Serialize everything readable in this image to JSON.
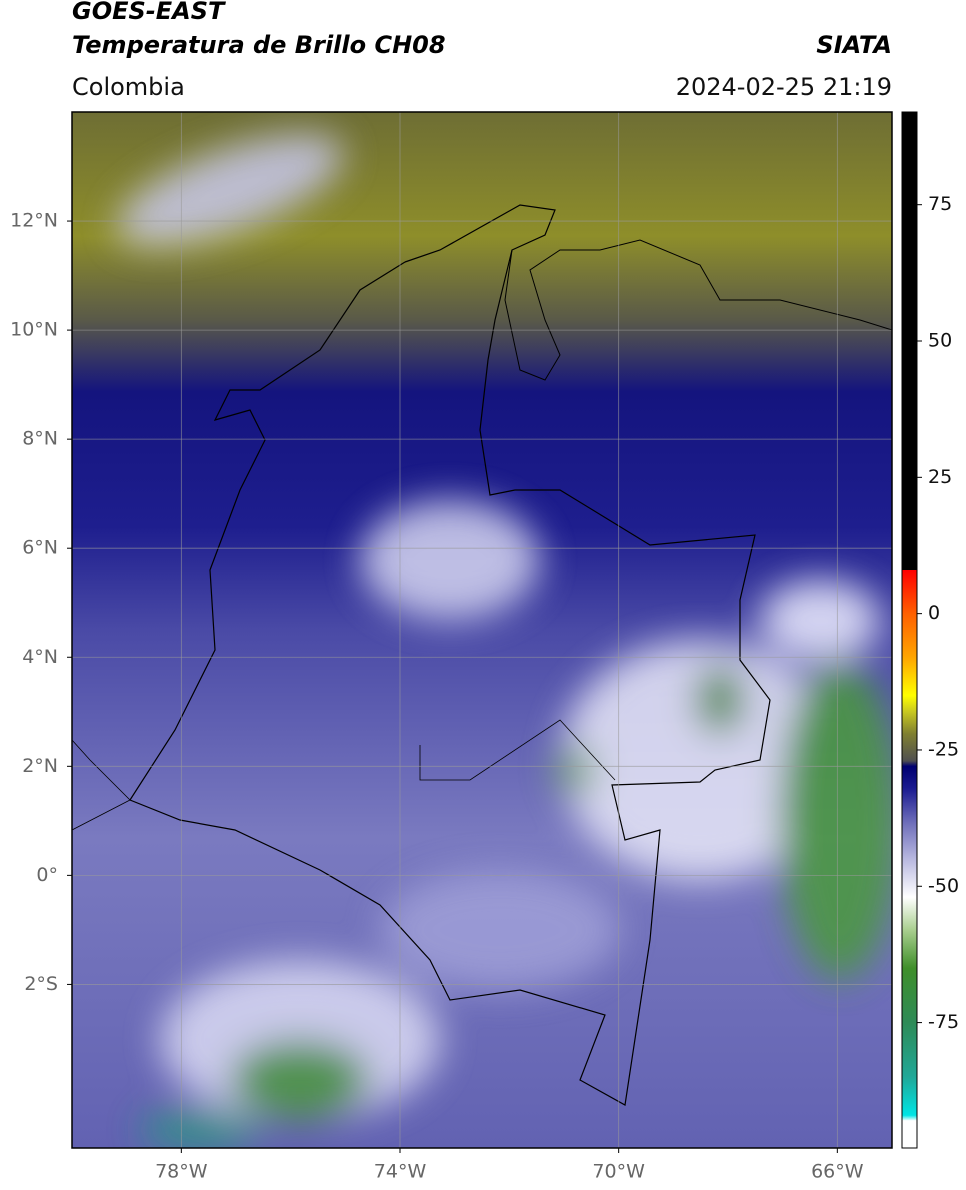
{
  "chart_data": {
    "type": "map",
    "title": "GOES-EAST",
    "subtitle": "Temperatura de Brillo CH08",
    "source": "SIATA",
    "region": "Colombia",
    "datetime": "2024-02-25 21:19",
    "xlim": [
      -80,
      -65
    ],
    "ylim": [
      -5,
      14
    ],
    "xticks": [
      {
        "value": -78,
        "label": "78°W"
      },
      {
        "value": -74,
        "label": "74°W"
      },
      {
        "value": -70,
        "label": "70°W"
      },
      {
        "value": -66,
        "label": "66°W"
      }
    ],
    "yticks": [
      {
        "value": -2,
        "label": "2°S"
      },
      {
        "value": 0,
        "label": "0°"
      },
      {
        "value": 2,
        "label": "2°N"
      },
      {
        "value": 4,
        "label": "4°N"
      },
      {
        "value": 6,
        "label": "6°N"
      },
      {
        "value": 8,
        "label": "8°N"
      },
      {
        "value": 10,
        "label": "10°N"
      },
      {
        "value": 12,
        "label": "12°N"
      }
    ],
    "grid": true,
    "colorbar": {
      "clim": [
        -98,
        92
      ],
      "ticks": [
        -75,
        -50,
        -25,
        0,
        25,
        50,
        75
      ],
      "colorscale": [
        {
          "value": -98,
          "color": "#ffffff"
        },
        {
          "value": -93,
          "color": "#ffffff"
        },
        {
          "value": -92,
          "color": "#00e5e5"
        },
        {
          "value": -85,
          "color": "#20a898"
        },
        {
          "value": -75,
          "color": "#2e8b57"
        },
        {
          "value": -65,
          "color": "#3f8f2a"
        },
        {
          "value": -58,
          "color": "#a9cf8f"
        },
        {
          "value": -52,
          "color": "#ffffff"
        },
        {
          "value": -45,
          "color": "#b8b8e0"
        },
        {
          "value": -38,
          "color": "#6a6ab8"
        },
        {
          "value": -32,
          "color": "#1a1a90"
        },
        {
          "value": -28,
          "color": "#000070"
        },
        {
          "value": -27,
          "color": "#505050"
        },
        {
          "value": -22,
          "color": "#808030"
        },
        {
          "value": -18,
          "color": "#c8c820"
        },
        {
          "value": -15,
          "color": "#ffff00"
        },
        {
          "value": -8,
          "color": "#ffa500"
        },
        {
          "value": 0,
          "color": "#ff6000"
        },
        {
          "value": 8,
          "color": "#ff0000"
        },
        {
          "value": 8,
          "color": "#000000"
        },
        {
          "value": 92,
          "color": "#000000"
        }
      ]
    }
  }
}
